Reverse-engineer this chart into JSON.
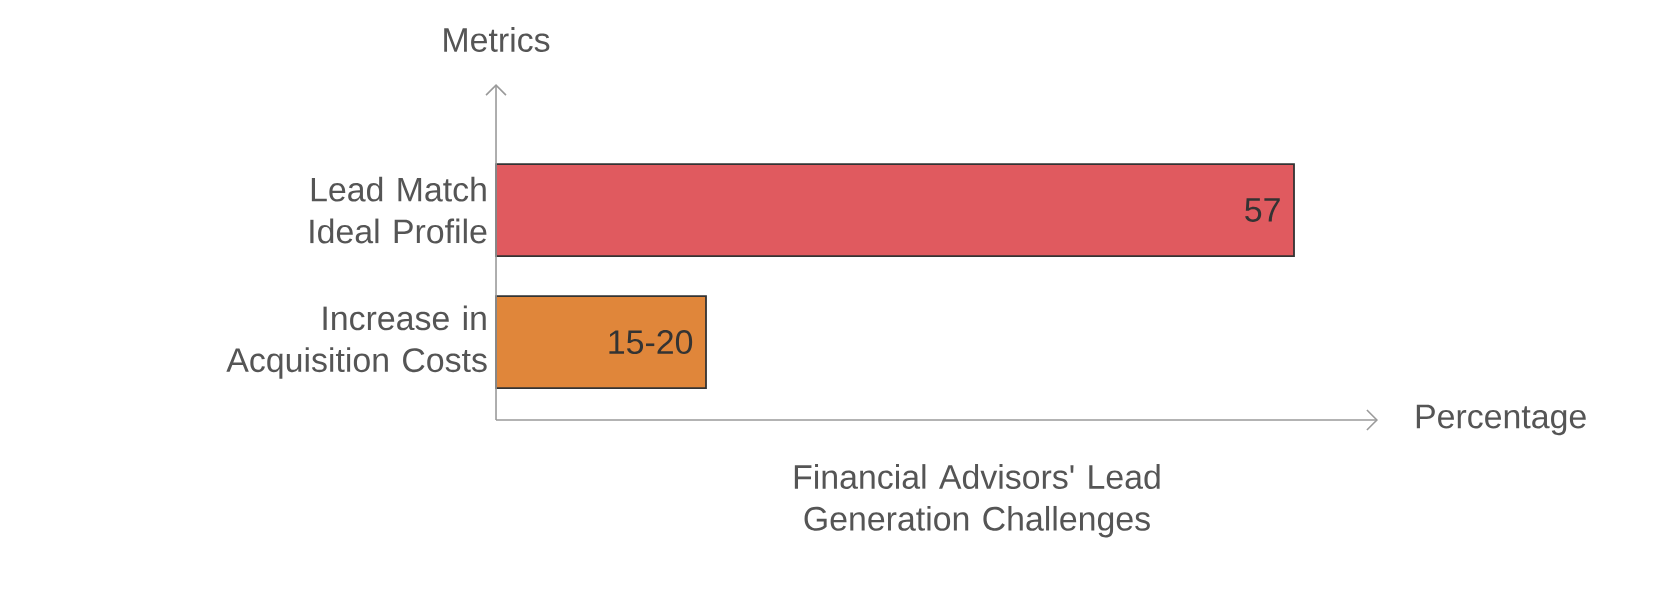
{
  "chart_data": {
    "type": "bar",
    "orientation": "horizontal",
    "title": "Financial Advisors' Lead Generation Challenges",
    "xlabel": "Percentage",
    "ylabel": "Metrics",
    "categories": [
      "Lead Match Ideal Profile",
      "Increase in Acquisition Costs"
    ],
    "values": [
      57,
      15
    ],
    "value_labels": [
      "57",
      "15-20"
    ],
    "colors": [
      "#e05a5f",
      "#e0863a"
    ],
    "xlim": [
      0,
      63
    ],
    "tick_labels": "y"
  }
}
